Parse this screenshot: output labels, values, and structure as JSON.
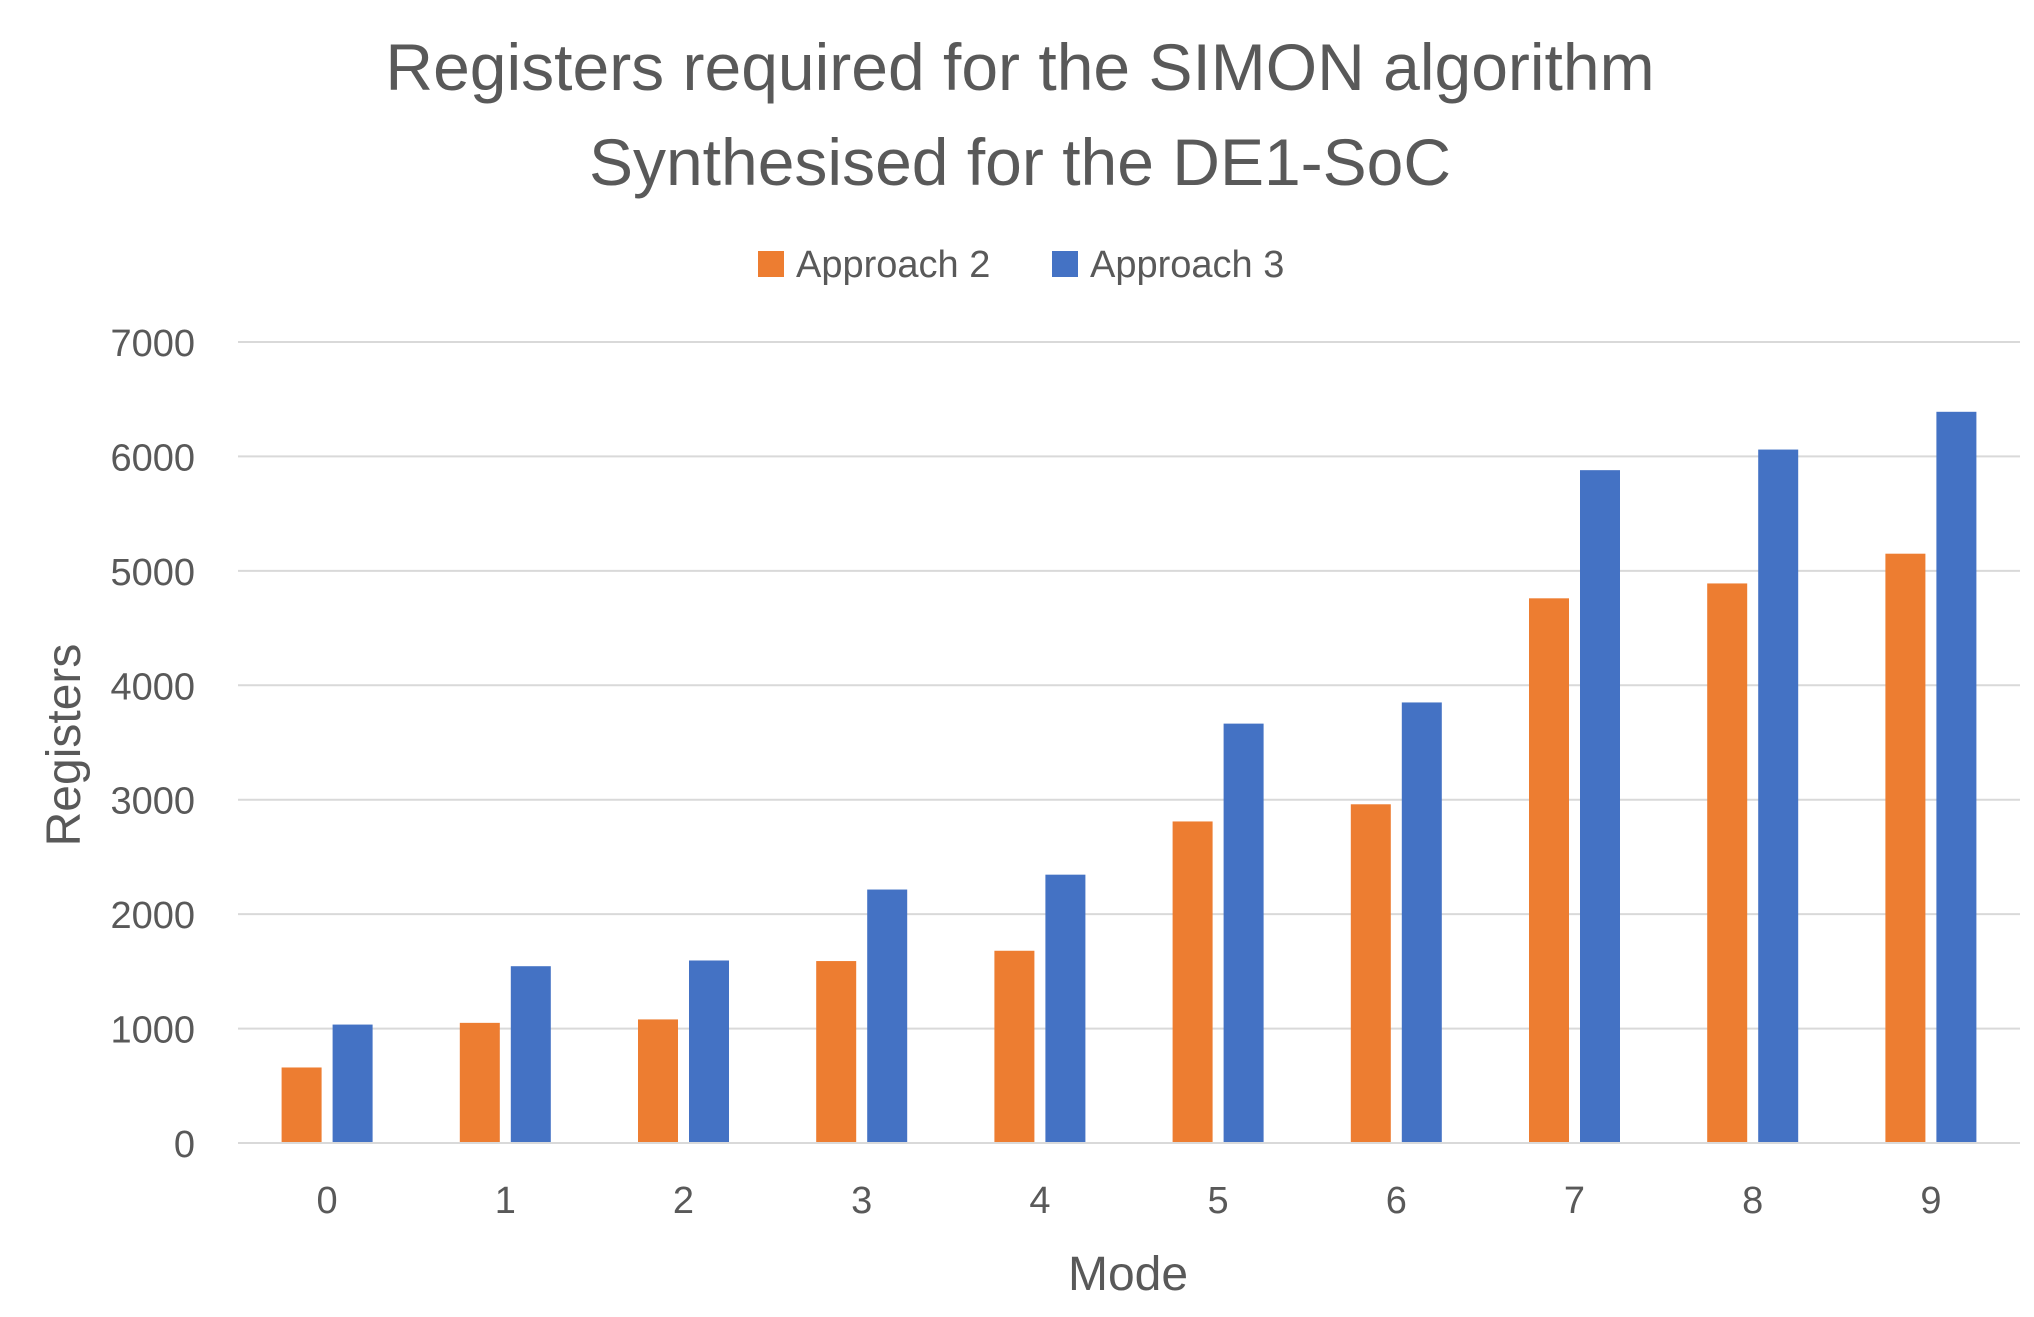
{
  "chart_data": {
    "type": "bar",
    "title": "Registers required for the SIMON algorithm",
    "subtitle": "Synthesised for the DE1-SoC",
    "xlabel": "Mode",
    "ylabel": "Registers",
    "categories": [
      "0",
      "1",
      "2",
      "3",
      "4",
      "5",
      "6",
      "7",
      "8",
      "9"
    ],
    "series": [
      {
        "name": "Approach 2",
        "color": "#ED7D31",
        "values": [
          660,
          1050,
          1080,
          1590,
          1680,
          2810,
          2960,
          4760,
          4890,
          5150
        ]
      },
      {
        "name": "Approach 3",
        "color": "#4472C4",
        "values": [
          1035,
          1545,
          1595,
          2215,
          2345,
          3665,
          3850,
          5880,
          6060,
          6390
        ]
      }
    ],
    "ylim": [
      0,
      7000
    ],
    "yticks": [
      "0",
      "1000",
      "2000",
      "3000",
      "4000",
      "5000",
      "6000",
      "7000"
    ],
    "grid": true,
    "legend_position": "top-center"
  }
}
